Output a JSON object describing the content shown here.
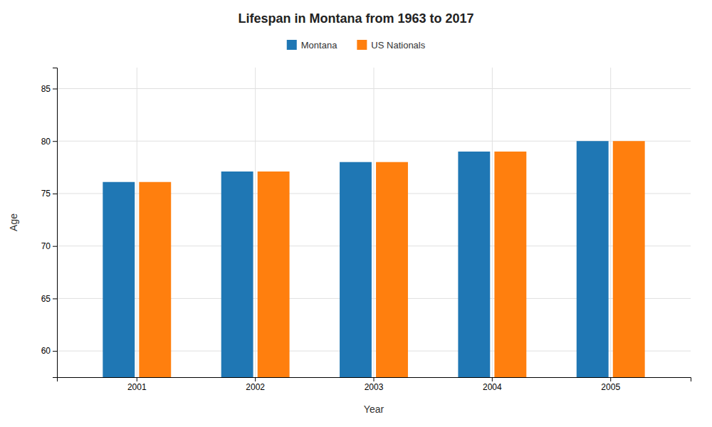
{
  "chart_data": {
    "type": "bar",
    "title": "Lifespan in Montana from 1963 to 2017",
    "x_label": "Year",
    "y_label": "Age",
    "categories": [
      "2001",
      "2002",
      "2003",
      "2004",
      "2005"
    ],
    "series": [
      {
        "name": "Montana",
        "values": [
          76.1,
          77.1,
          78.0,
          79.0,
          80.0
        ]
      },
      {
        "name": "US Nationals",
        "values": [
          76.1,
          77.1,
          78.0,
          79.0,
          80.0
        ]
      }
    ],
    "ylim": [
      57.5,
      87
    ],
    "yticks": [
      60,
      65,
      70,
      75,
      80,
      85
    ],
    "grid": true,
    "legend": "top"
  }
}
